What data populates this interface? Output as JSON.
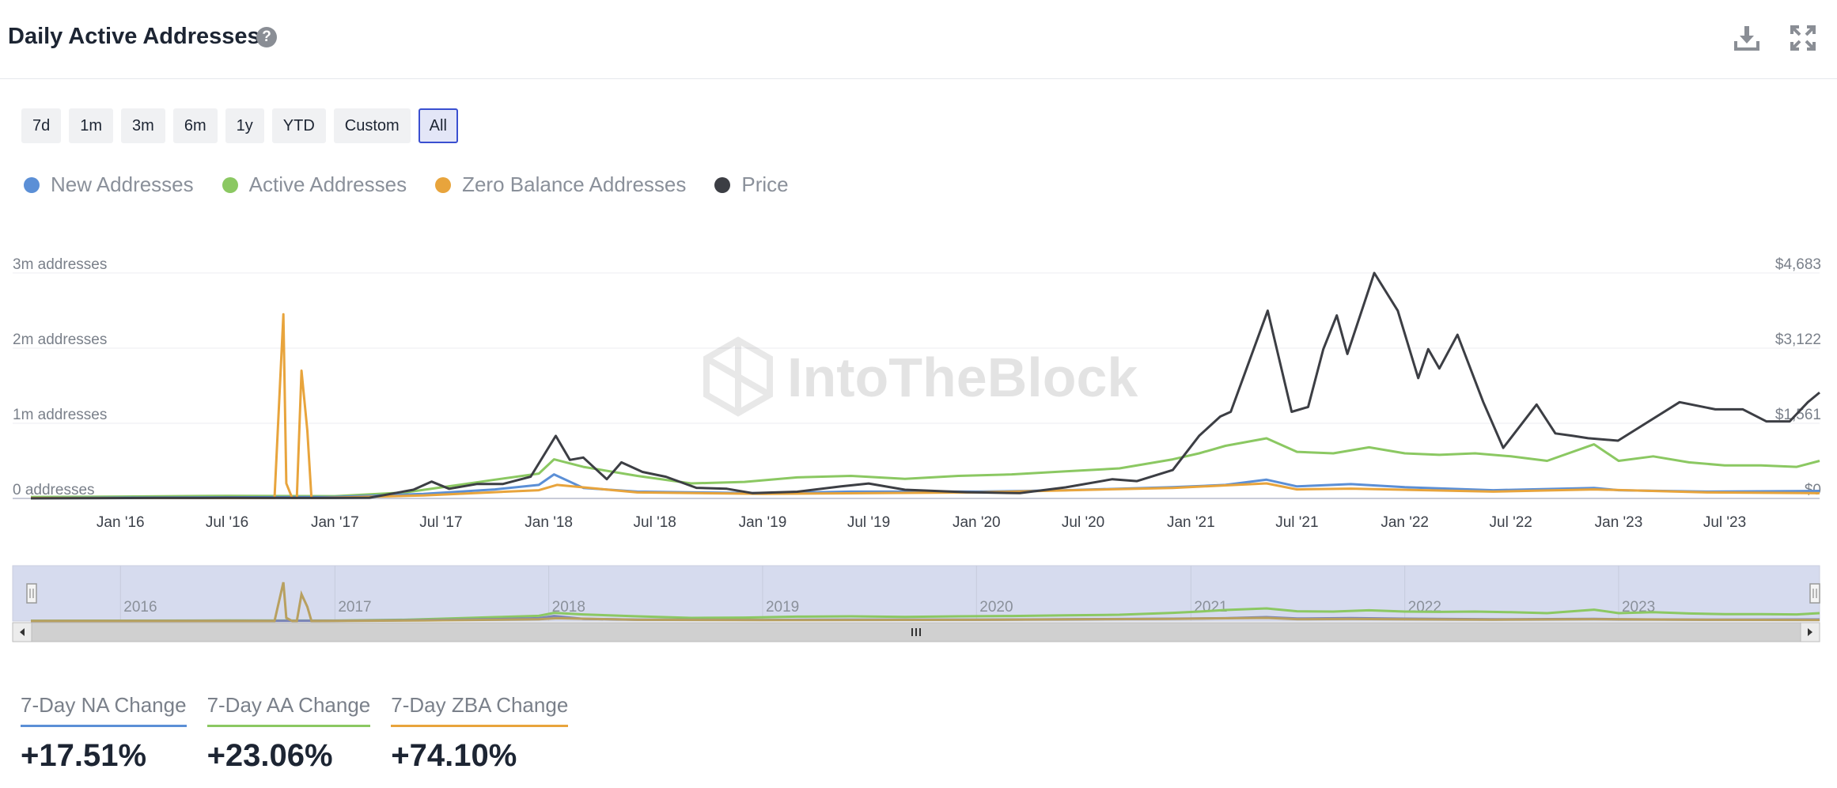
{
  "header": {
    "title": "Daily Active Addresses",
    "help_icon": "question-circle-icon",
    "download_icon": "download-icon",
    "fullscreen_icon": "fullscreen-icon"
  },
  "ranges": [
    {
      "label": "7d",
      "active": false
    },
    {
      "label": "1m",
      "active": false
    },
    {
      "label": "3m",
      "active": false
    },
    {
      "label": "6m",
      "active": false
    },
    {
      "label": "1y",
      "active": false
    },
    {
      "label": "YTD",
      "active": false
    },
    {
      "label": "Custom",
      "active": false
    },
    {
      "label": "All",
      "active": true
    }
  ],
  "legend": [
    {
      "label": "New Addresses",
      "color": "#5b8fd6"
    },
    {
      "label": "Active Addresses",
      "color": "#8bc862"
    },
    {
      "label": "Zero Balance Addresses",
      "color": "#e8a43c"
    },
    {
      "label": "Price",
      "color": "#3c3e44"
    }
  ],
  "watermark": "IntoTheBlock",
  "navigator": {
    "years": [
      "2016",
      "2017",
      "2018",
      "2019",
      "2020",
      "2021",
      "2022",
      "2023"
    ]
  },
  "stats": [
    {
      "label": "7-Day NA Change",
      "value": "+17.51%",
      "color": "#5b8fd6"
    },
    {
      "label": "7-Day AA Change",
      "value": "+23.06%",
      "color": "#8bc862"
    },
    {
      "label": "7-Day ZBA Change",
      "value": "+74.10%",
      "color": "#e8a43c"
    }
  ],
  "chart_data": {
    "type": "line",
    "x_tick_labels": [
      "Jan '16",
      "Jul '16",
      "Jan '17",
      "Jul '17",
      "Jan '18",
      "Jul '18",
      "Jan '19",
      "Jul '19",
      "Jan '20",
      "Jul '20",
      "Jan '21",
      "Jul '21",
      "Jan '22",
      "Jul '22",
      "Jan '23",
      "Jul '23"
    ],
    "xlim": [
      "2015-07-01",
      "2023-12-10"
    ],
    "y_left": {
      "ticks": [
        "0 addresses",
        "1m addresses",
        "2m addresses",
        "3m addresses"
      ],
      "ylim": [
        0,
        3000000
      ]
    },
    "y_right": {
      "ticks": [
        "$0",
        "$1,561",
        "$3,122",
        "$4,683"
      ],
      "ylim": [
        0,
        4683
      ]
    },
    "grid": true,
    "series": [
      {
        "name": "Active Addresses",
        "axis": "left",
        "color": "#8bc862",
        "x": [
          "2015-08-01",
          "2016-01-01",
          "2016-07-01",
          "2017-01-01",
          "2017-05-01",
          "2017-08-01",
          "2017-10-01",
          "2017-12-15",
          "2018-01-10",
          "2018-03-01",
          "2018-06-01",
          "2018-09-01",
          "2018-12-01",
          "2019-03-01",
          "2019-06-01",
          "2019-09-01",
          "2019-12-01",
          "2020-03-01",
          "2020-06-01",
          "2020-09-01",
          "2020-12-01",
          "2021-01-15",
          "2021-03-01",
          "2021-05-10",
          "2021-07-01",
          "2021-09-01",
          "2021-11-01",
          "2022-01-01",
          "2022-03-01",
          "2022-05-01",
          "2022-07-01",
          "2022-09-01",
          "2022-11-20",
          "2023-01-01",
          "2023-03-01",
          "2023-05-01",
          "2023-07-01",
          "2023-09-01",
          "2023-11-01",
          "2023-12-10"
        ],
        "y": [
          20000,
          25000,
          35000,
          30000,
          80000,
          180000,
          250000,
          330000,
          520000,
          420000,
          300000,
          200000,
          220000,
          280000,
          300000,
          260000,
          300000,
          320000,
          360000,
          400000,
          520000,
          600000,
          700000,
          800000,
          620000,
          600000,
          680000,
          600000,
          580000,
          600000,
          560000,
          500000,
          720000,
          500000,
          560000,
          480000,
          440000,
          440000,
          420000,
          500000
        ]
      },
      {
        "name": "New Addresses",
        "axis": "left",
        "color": "#5b8fd6",
        "x": [
          "2015-08-01",
          "2016-07-01",
          "2017-01-01",
          "2017-06-01",
          "2017-10-01",
          "2017-12-15",
          "2018-01-10",
          "2018-03-01",
          "2018-06-01",
          "2019-01-01",
          "2019-06-01",
          "2020-01-01",
          "2020-06-01",
          "2020-12-01",
          "2021-03-01",
          "2021-05-10",
          "2021-07-01",
          "2021-10-01",
          "2022-01-01",
          "2022-06-01",
          "2022-11-20",
          "2023-01-01",
          "2023-06-01",
          "2023-12-10"
        ],
        "y": [
          5000,
          15000,
          20000,
          60000,
          120000,
          180000,
          320000,
          140000,
          90000,
          70000,
          90000,
          90000,
          110000,
          150000,
          180000,
          250000,
          160000,
          190000,
          150000,
          110000,
          140000,
          110000,
          90000,
          100000
        ]
      },
      {
        "name": "Zero Balance Addresses",
        "axis": "left",
        "color": "#e8a43c",
        "x": [
          "2015-08-01",
          "2016-09-20",
          "2016-10-05",
          "2016-10-10",
          "2016-10-20",
          "2016-10-28",
          "2016-11-05",
          "2016-11-15",
          "2016-11-22",
          "2016-12-01",
          "2017-06-01",
          "2017-12-15",
          "2018-01-15",
          "2018-06-01",
          "2019-01-01",
          "2020-01-01",
          "2020-12-01",
          "2021-05-10",
          "2021-07-01",
          "2021-10-01",
          "2022-06-01",
          "2022-11-20",
          "2023-06-01",
          "2023-12-10"
        ],
        "y": [
          5000,
          5000,
          2450000,
          200000,
          5000,
          5000,
          1700000,
          900000,
          5000,
          5000,
          40000,
          110000,
          180000,
          80000,
          60000,
          80000,
          140000,
          200000,
          120000,
          130000,
          90000,
          120000,
          80000,
          70000
        ]
      },
      {
        "name": "Price",
        "axis": "right",
        "color": "#3c3e44",
        "x": [
          "2015-08-01",
          "2016-03-01",
          "2016-07-01",
          "2017-01-01",
          "2017-03-01",
          "2017-05-15",
          "2017-06-15",
          "2017-07-15",
          "2017-09-01",
          "2017-10-15",
          "2017-12-01",
          "2018-01-13",
          "2018-02-06",
          "2018-03-01",
          "2018-04-10",
          "2018-05-05",
          "2018-06-10",
          "2018-07-20",
          "2018-09-10",
          "2018-11-01",
          "2018-12-15",
          "2019-03-01",
          "2019-05-15",
          "2019-07-01",
          "2019-09-01",
          "2019-12-15",
          "2020-03-15",
          "2020-06-01",
          "2020-08-20",
          "2020-10-01",
          "2020-12-01",
          "2021-01-15",
          "2021-02-20",
          "2021-03-10",
          "2021-05-12",
          "2021-06-22",
          "2021-07-20",
          "2021-08-15",
          "2021-09-07",
          "2021-09-25",
          "2021-11-10",
          "2021-12-20",
          "2022-01-24",
          "2022-02-10",
          "2022-03-01",
          "2022-04-01",
          "2022-05-15",
          "2022-06-18",
          "2022-08-14",
          "2022-09-15",
          "2022-10-15",
          "2022-11-10",
          "2022-12-31",
          "2023-04-15",
          "2023-06-15",
          "2023-08-01",
          "2023-09-10",
          "2023-10-20",
          "2023-11-20",
          "2023-12-10"
        ],
        "y": [
          2,
          10,
          12,
          10,
          15,
          180,
          350,
          200,
          300,
          300,
          450,
          1300,
          800,
          850,
          400,
          750,
          550,
          450,
          220,
          200,
          110,
          140,
          250,
          310,
          180,
          130,
          110,
          230,
          400,
          360,
          590,
          1300,
          1700,
          1800,
          3900,
          1800,
          1900,
          3100,
          3800,
          3000,
          4683,
          3900,
          2500,
          3100,
          2700,
          3400,
          2000,
          1050,
          1950,
          1350,
          1300,
          1250,
          1200,
          2000,
          1850,
          1850,
          1600,
          1600,
          2000,
          2200
        ]
      }
    ]
  }
}
